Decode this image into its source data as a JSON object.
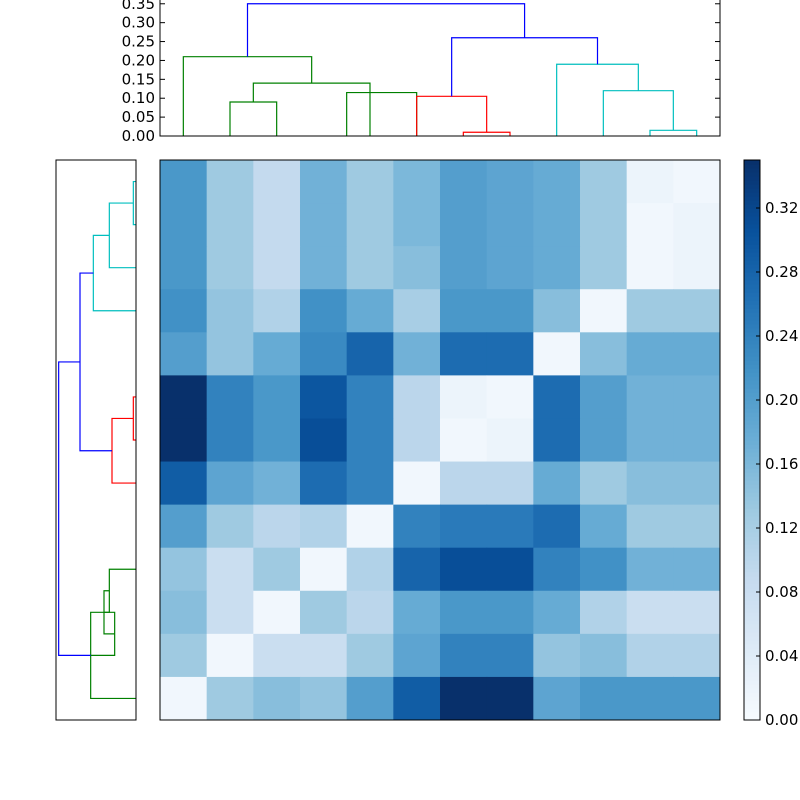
{
  "chart_data": {
    "type": "heatmap",
    "title": "",
    "xlabel": "",
    "ylabel": "",
    "colormap": "Blues",
    "value_range": [
      0,
      0.35
    ],
    "matrix": [
      [
        0.21,
        0.13,
        0.09,
        0.17,
        0.13,
        0.16,
        0.2,
        0.19,
        0.18,
        0.13,
        0.02,
        0.01
      ],
      [
        0.21,
        0.13,
        0.09,
        0.17,
        0.13,
        0.16,
        0.2,
        0.19,
        0.18,
        0.13,
        0.01,
        0.02
      ],
      [
        0.21,
        0.13,
        0.09,
        0.17,
        0.13,
        0.15,
        0.2,
        0.19,
        0.18,
        0.13,
        0.01,
        0.02
      ],
      [
        0.22,
        0.14,
        0.11,
        0.22,
        0.18,
        0.12,
        0.21,
        0.21,
        0.15,
        0.01,
        0.13,
        0.13
      ],
      [
        0.2,
        0.14,
        0.18,
        0.23,
        0.28,
        0.17,
        0.27,
        0.27,
        0.01,
        0.15,
        0.18,
        0.18
      ],
      [
        0.35,
        0.24,
        0.21,
        0.3,
        0.24,
        0.1,
        0.02,
        0.01,
        0.27,
        0.2,
        0.17,
        0.17
      ],
      [
        0.35,
        0.24,
        0.21,
        0.31,
        0.24,
        0.1,
        0.01,
        0.02,
        0.27,
        0.2,
        0.17,
        0.17
      ],
      [
        0.29,
        0.19,
        0.17,
        0.27,
        0.24,
        0.01,
        0.1,
        0.1,
        0.18,
        0.13,
        0.15,
        0.15
      ],
      [
        0.2,
        0.13,
        0.1,
        0.11,
        0.01,
        0.24,
        0.25,
        0.25,
        0.27,
        0.18,
        0.13,
        0.13
      ],
      [
        0.14,
        0.08,
        0.13,
        0.01,
        0.11,
        0.28,
        0.31,
        0.31,
        0.24,
        0.22,
        0.17,
        0.17
      ],
      [
        0.15,
        0.08,
        0.01,
        0.13,
        0.1,
        0.18,
        0.21,
        0.21,
        0.18,
        0.11,
        0.08,
        0.08
      ],
      [
        0.13,
        0.01,
        0.08,
        0.08,
        0.13,
        0.19,
        0.24,
        0.24,
        0.14,
        0.15,
        0.11,
        0.11
      ],
      [
        0.01,
        0.13,
        0.15,
        0.14,
        0.2,
        0.29,
        0.35,
        0.35,
        0.19,
        0.21,
        0.21,
        0.21
      ]
    ],
    "top_dendrogram": {
      "ylim": [
        0,
        0.36
      ],
      "yticks": [
        "0.00",
        "0.05",
        "0.10",
        "0.15",
        "0.20",
        "0.25",
        "0.30",
        "0.35"
      ],
      "leaf_count": 12,
      "links": [
        {
          "a": 1,
          "b": 2,
          "h": 0.09,
          "color": "#008000"
        },
        {
          "a": 1.5,
          "b": 4,
          "h": 0.14,
          "color": "#008000"
        },
        {
          "a": 3.5,
          "b": 5,
          "h": 0.115,
          "color": "#008000"
        },
        {
          "a": 0,
          "b": 2.75,
          "h": 0.21,
          "color": "#008000"
        },
        {
          "a": 6,
          "b": 7,
          "h": 0.01,
          "color": "#ff0000"
        },
        {
          "a": 5,
          "b": 6.5,
          "h": 0.105,
          "color": "#ff0000"
        },
        {
          "a": 10,
          "b": 11,
          "h": 0.015,
          "color": "#00bfbf"
        },
        {
          "a": 9,
          "b": 10.5,
          "h": 0.12,
          "color": "#00bfbf"
        },
        {
          "a": 8,
          "b": 9.75,
          "h": 0.19,
          "color": "#00bfbf"
        },
        {
          "a": 5.75,
          "b": 8.875,
          "h": 0.26,
          "color": "#0000ff"
        },
        {
          "a": 1.375,
          "b": 7.3125,
          "h": 0.35,
          "color": "#0000ff"
        }
      ]
    },
    "left_dendrogram": {
      "leaf_count": 13,
      "links": [
        {
          "a": 0,
          "b": 1,
          "h": 0.01,
          "color": "#00bfbf"
        },
        {
          "a": 0.5,
          "b": 2,
          "h": 0.1,
          "color": "#00bfbf"
        },
        {
          "a": 1.25,
          "b": 3,
          "h": 0.16,
          "color": "#00bfbf"
        },
        {
          "a": 5,
          "b": 6,
          "h": 0.01,
          "color": "#ff0000"
        },
        {
          "a": 5.5,
          "b": 7,
          "h": 0.09,
          "color": "#ff0000"
        },
        {
          "a": 2.125,
          "b": 6.25,
          "h": 0.21,
          "color": "#0000ff"
        },
        {
          "a": 9,
          "b": 10,
          "h": 0.1,
          "color": "#008000"
        },
        {
          "a": 10,
          "b": 11,
          "h": 0.08,
          "color": "#008000"
        },
        {
          "a": 9.5,
          "b": 10.5,
          "h": 0.12,
          "color": "#008000"
        },
        {
          "a": 10,
          "b": 12,
          "h": 0.17,
          "color": "#008000"
        },
        {
          "a": 4.1875,
          "b": 11,
          "h": 0.29,
          "color": "#0000ff"
        }
      ],
      "xlim": [
        0,
        0.3
      ]
    },
    "colorbar": {
      "ticks": [
        "0.00",
        "0.04",
        "0.08",
        "0.12",
        "0.16",
        "0.20",
        "0.24",
        "0.28",
        "0.32"
      ],
      "range": [
        0,
        0.35
      ]
    }
  }
}
